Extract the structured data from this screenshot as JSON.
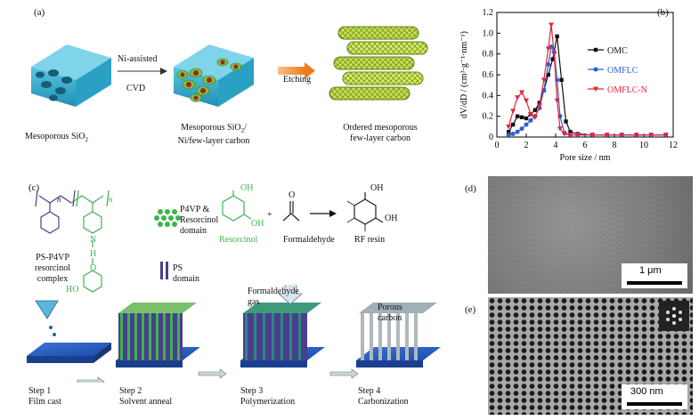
{
  "panel_a": {
    "tag": "(a)",
    "label_silica": "Mesoporous SiO",
    "label_silica_sub": "2",
    "arrow1_top": "Ni-assisted",
    "arrow1_bottom": "CVD",
    "label_ni_1": "Mesoporous SiO",
    "label_ni_1_sub": "2",
    "label_ni_1_tail": "/",
    "label_ni_2": "Ni/few-layer carbon",
    "arrow2": "Etching",
    "label_omflc_1": "Ordered mesoporous",
    "label_omflc_2": "few-layer carbon"
  },
  "panel_b": {
    "tag": "(b)",
    "colors": {
      "OMC": "#111111",
      "OMFLC": "#2e5fd0",
      "OMFLC-N": "#e8253a"
    }
  },
  "chart_data": {
    "type": "line",
    "xlabel": "Pore size / nm",
    "ylabel": "dV/dD / (cm³·g⁻¹·nm⁻¹)",
    "xlim": [
      0,
      12
    ],
    "ylim": [
      0,
      1.2
    ],
    "xticks": [
      "0",
      "2",
      "4",
      "6",
      "8",
      "10",
      "12"
    ],
    "yticks": [
      "0",
      "0.2",
      "0.4",
      "0.6",
      "0.8",
      "1.0",
      "1.2"
    ],
    "legend_position": "right",
    "series": [
      {
        "name": "OMC",
        "marker": "square",
        "x": [
          0.8,
          1.1,
          1.4,
          1.7,
          2.0,
          2.3,
          2.6,
          2.9,
          3.2,
          3.5,
          3.8,
          4.1,
          4.4,
          4.7,
          5.0,
          5.5,
          6.5,
          7.5,
          8.5,
          9.5,
          10.5,
          11.5
        ],
        "y": [
          0.05,
          0.12,
          0.2,
          0.19,
          0.18,
          0.22,
          0.26,
          0.33,
          0.45,
          0.6,
          0.75,
          0.97,
          0.55,
          0.15,
          0.05,
          0.03,
          0.02,
          0.02,
          0.02,
          0.02,
          0.02,
          0.02
        ]
      },
      {
        "name": "OMFLC",
        "marker": "circle",
        "x": [
          0.8,
          1.1,
          1.4,
          1.7,
          2.0,
          2.3,
          2.6,
          2.9,
          3.2,
          3.5,
          3.7,
          3.9,
          4.1,
          4.3,
          4.6,
          5.0,
          5.5,
          6.5,
          7.5,
          8.5,
          9.5,
          10.5,
          11.5
        ],
        "y": [
          0.02,
          0.03,
          0.05,
          0.08,
          0.12,
          0.16,
          0.2,
          0.28,
          0.45,
          0.7,
          0.87,
          0.82,
          0.55,
          0.2,
          0.04,
          0.02,
          0.02,
          0.02,
          0.02,
          0.02,
          0.02,
          0.02,
          0.02
        ]
      },
      {
        "name": "OMFLC-N",
        "marker": "triangle-down",
        "x": [
          0.8,
          1.1,
          1.4,
          1.7,
          2.0,
          2.3,
          2.6,
          2.9,
          3.2,
          3.5,
          3.7,
          3.9,
          4.1,
          4.3,
          4.6,
          5.0,
          5.5,
          6.5,
          7.5,
          8.5,
          9.5,
          10.5,
          11.5
        ],
        "y": [
          0.1,
          0.25,
          0.38,
          0.43,
          0.35,
          0.22,
          0.19,
          0.3,
          0.55,
          0.85,
          1.08,
          0.8,
          0.35,
          0.08,
          0.03,
          0.02,
          0.02,
          0.02,
          0.02,
          0.02,
          0.02,
          0.02,
          0.02
        ]
      }
    ]
  },
  "panel_c": {
    "tag": "(c)",
    "polymer_n": "n",
    "polymer_m": "m",
    "nitrogen": "N",
    "hydrogen": "H",
    "oxygen": "O",
    "ho": "HO",
    "complex_1": "PS-P4VP",
    "complex_2": "resorcinol",
    "complex_3": "complex",
    "p4vp_1": "P4VP &",
    "p4vp_2": "Resorcinol",
    "p4vp_3": "domain",
    "ps_1": "PS",
    "ps_2": "domain",
    "oh_top": "OH",
    "oh_right": "OH",
    "plus": "+",
    "oxygen_carbonyl": "O",
    "resorcinol": "Resorcinol",
    "formaldehyde": "Formaldehyde",
    "rf_oh1": "OH",
    "rf_oh2": "OH",
    "rf_resin": "RF resin",
    "gas_1": "Formaldehyde",
    "gas_2": "gas",
    "porous_1": "Porous",
    "porous_2": "carbon",
    "step1_t": "Step 1",
    "step1_d": "Film cast",
    "step2_t": "Step 2",
    "step2_d": "Solvent anneal",
    "step3_t": "Step 3",
    "step3_d": "Polymerization",
    "step4_t": "Step 4",
    "step4_d": "Carbonization",
    "colors": {
      "green": "#3cb44b",
      "purple": "#4b3d8f",
      "blue": "#2f5fc4"
    }
  },
  "panel_d": {
    "tag": "(d)",
    "scale": "1 μm"
  },
  "panel_e": {
    "tag": "(e)",
    "scale": "300 nm"
  }
}
